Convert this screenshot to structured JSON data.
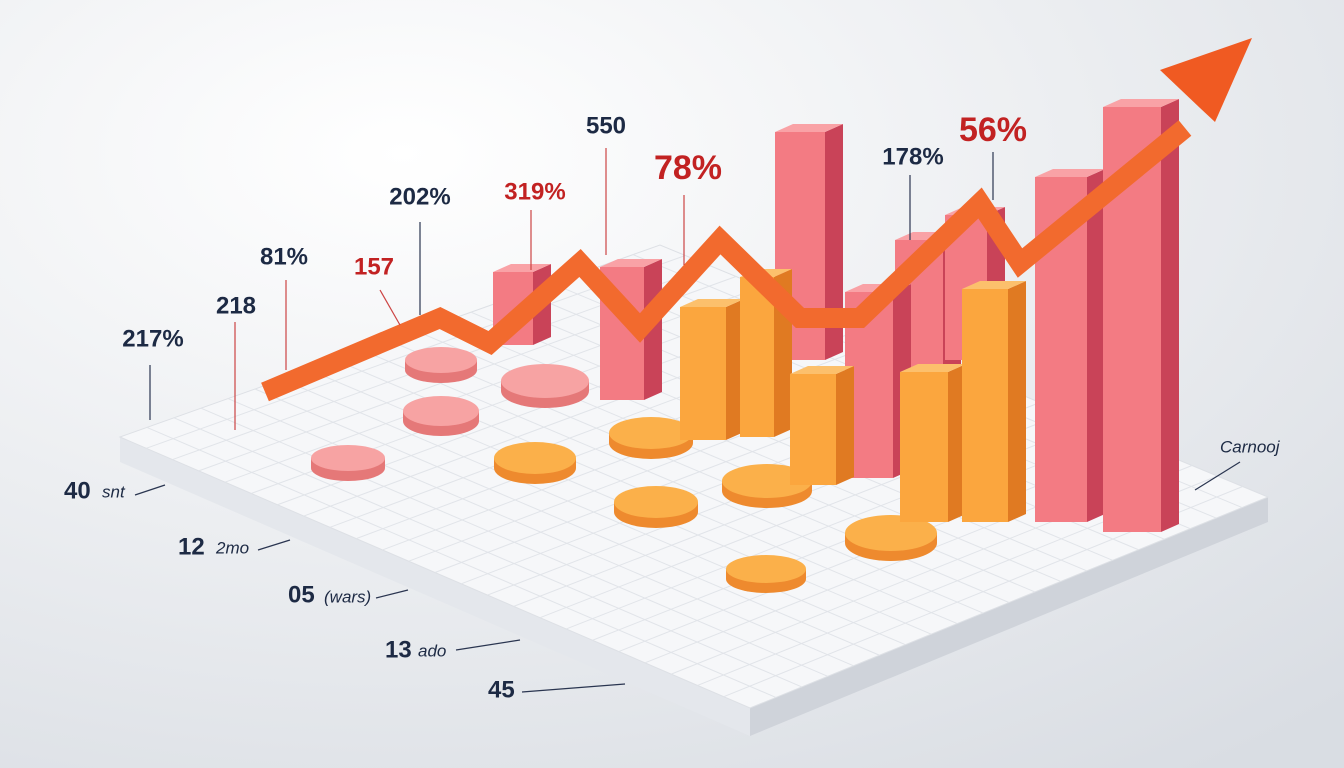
{
  "callouts": [
    {
      "label": "217%"
    },
    {
      "label": "218"
    },
    {
      "label": "81%"
    },
    {
      "label": "157"
    },
    {
      "label": "202%"
    },
    {
      "label": "319%"
    },
    {
      "label": "550"
    },
    {
      "label": "78%"
    },
    {
      "label": "178%"
    },
    {
      "label": "56%"
    }
  ],
  "side_labels": [
    {
      "number": "40",
      "text": "snt"
    },
    {
      "number": "12",
      "text": "2mo"
    },
    {
      "number": "05",
      "text": "(wars)"
    },
    {
      "number": "13",
      "text": "ado"
    },
    {
      "number": "45",
      "text": ""
    }
  ],
  "corner_label": "Carnooj"
}
